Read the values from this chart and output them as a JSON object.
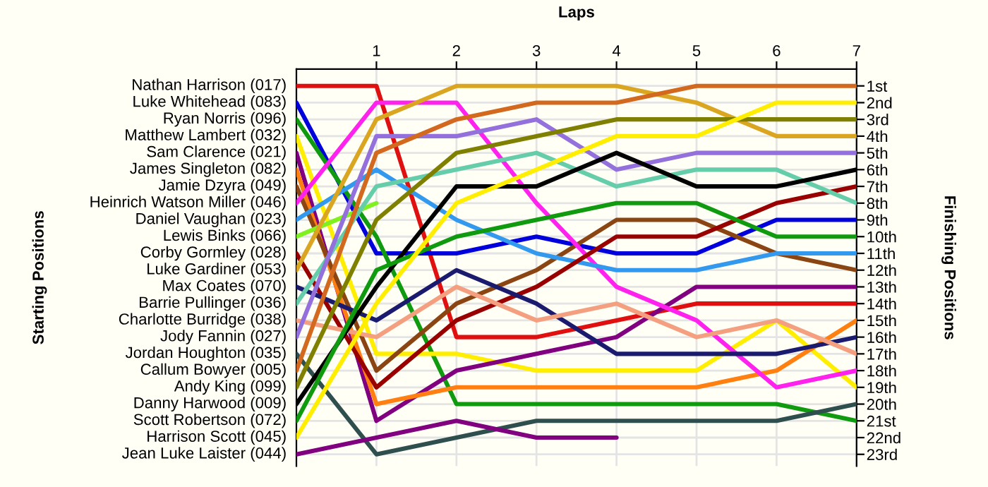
{
  "chart_data": {
    "type": "line",
    "xlabel": "Laps",
    "ylabel": "Finishing Positions",
    "annotations": [
      "Starting Positions"
    ],
    "x": [
      0,
      1,
      2,
      3,
      4,
      5,
      6,
      7
    ],
    "xlim": [
      0,
      7
    ],
    "xticks": [
      1,
      2,
      3,
      4,
      5,
      6,
      7
    ],
    "ylim": [
      23.7,
      0
    ],
    "yticks": [
      {
        "value": 1,
        "label": "1st"
      },
      {
        "value": 2,
        "label": "2nd"
      },
      {
        "value": 3,
        "label": "3rd"
      },
      {
        "value": 4,
        "label": "4th"
      },
      {
        "value": 5,
        "label": "5th"
      },
      {
        "value": 6,
        "label": "6th"
      },
      {
        "value": 7,
        "label": "7th"
      },
      {
        "value": 8,
        "label": "8th"
      },
      {
        "value": 9,
        "label": "9th"
      },
      {
        "value": 10,
        "label": "10th"
      },
      {
        "value": 11,
        "label": "11th"
      },
      {
        "value": 12,
        "label": "12th"
      },
      {
        "value": 13,
        "label": "13th"
      },
      {
        "value": 14,
        "label": "14th"
      },
      {
        "value": 15,
        "label": "15th"
      },
      {
        "value": 16,
        "label": "16th"
      },
      {
        "value": 17,
        "label": "17th"
      },
      {
        "value": 18,
        "label": "18th"
      },
      {
        "value": 19,
        "label": "19th"
      },
      {
        "value": 20,
        "label": "20th"
      },
      {
        "value": 21,
        "label": "21st"
      },
      {
        "value": 22,
        "label": "22nd"
      },
      {
        "value": 23,
        "label": "23rd"
      }
    ],
    "grid": true,
    "legend": "left",
    "series": [
      {
        "name": "Nathan Harrison (017)",
        "color": "#e01010",
        "values": [
          1,
          1,
          16,
          16,
          15,
          14,
          14,
          14
        ]
      },
      {
        "name": "Luke Whitehead (083)",
        "color": "#0000dd",
        "values": [
          2,
          11,
          11,
          10,
          11,
          11,
          9,
          9
        ]
      },
      {
        "name": "Ryan Norris (096)",
        "color": "#109a10",
        "values": [
          3,
          10,
          20,
          20,
          20,
          20,
          20,
          21
        ]
      },
      {
        "name": "Matthew Lambert (032)",
        "color": "#ffee00",
        "values": [
          4,
          17,
          17,
          18,
          18,
          18,
          15,
          19
        ]
      },
      {
        "name": "Sam Clarence (021)",
        "color": "#800080",
        "values": [
          5,
          21,
          18,
          17,
          16,
          13,
          13,
          13
        ]
      },
      {
        "name": "James Singleton (082)",
        "color": "#ff8010",
        "values": [
          6,
          20,
          19,
          19,
          19,
          19,
          18,
          15
        ]
      },
      {
        "name": "Jamie Dzyra (049)",
        "color": "#8b4513",
        "values": [
          7,
          18,
          14,
          12,
          9,
          9,
          11,
          12
        ]
      },
      {
        "name": "Heinrich Watson Miller (046)",
        "color": "#ff22ee",
        "values": [
          8,
          2,
          2,
          8,
          13,
          15,
          19,
          18
        ]
      },
      {
        "name": "Daniel Vaughan (023)",
        "color": "#3399ee",
        "values": [
          9,
          6,
          9,
          11,
          12,
          12,
          11,
          11
        ]
      },
      {
        "name": "Lewis Binks (066)",
        "color": "#80f020",
        "values": [
          10,
          8,
          null,
          null,
          null,
          null,
          null,
          null
        ]
      },
      {
        "name": "Corby Gormley (028)",
        "color": "#990000",
        "values": [
          11,
          19,
          15,
          13,
          10,
          10,
          8,
          7
        ]
      },
      {
        "name": "Luke Gardiner (053)",
        "color": "#daa520",
        "values": [
          12,
          3,
          1,
          1,
          1,
          2,
          4,
          4
        ]
      },
      {
        "name": "Max Coates (070)",
        "color": "#1a1a6e",
        "values": [
          13,
          15,
          12,
          14,
          17,
          17,
          17,
          16
        ]
      },
      {
        "name": "Barrie Pullinger (036)",
        "color": "#66cdaa",
        "values": [
          14,
          7,
          6,
          5,
          7,
          6,
          6,
          8
        ]
      },
      {
        "name": "Charlotte Burridge (038)",
        "color": "#f4a080",
        "values": [
          15,
          16,
          13,
          15,
          14,
          16,
          15,
          17
        ]
      },
      {
        "name": "Jody Fannin (027)",
        "color": "#9370db",
        "values": [
          16,
          4,
          4,
          3,
          6,
          5,
          5,
          5
        ]
      },
      {
        "name": "Jordan Houghton (035)",
        "color": "#2f4f4f",
        "values": [
          17,
          23,
          22,
          21,
          21,
          21,
          21,
          20
        ]
      },
      {
        "name": "Callum Bowyer (005)",
        "color": "#d2691e",
        "values": [
          18,
          5,
          3,
          2,
          2,
          1,
          1,
          1
        ]
      },
      {
        "name": "Andy King (099)",
        "color": "#808000",
        "values": [
          19,
          9,
          5,
          4,
          3,
          3,
          3,
          3
        ]
      },
      {
        "name": "Danny Harwood (009)",
        "color": "#000000",
        "values": [
          20,
          13,
          7,
          7,
          5,
          7,
          7,
          6
        ]
      },
      {
        "name": "Scott Robertson (072)",
        "color": "#109a10",
        "values": [
          21,
          12,
          10,
          9,
          8,
          8,
          10,
          10
        ]
      },
      {
        "name": "Harrison Scott (045)",
        "color": "#ffee00",
        "values": [
          22,
          14,
          8,
          6,
          4,
          4,
          2,
          2
        ]
      },
      {
        "name": "Jean Luke Laister (044)",
        "color": "#800080",
        "values": [
          23,
          22,
          21,
          22,
          22,
          null,
          null,
          null
        ]
      }
    ]
  }
}
